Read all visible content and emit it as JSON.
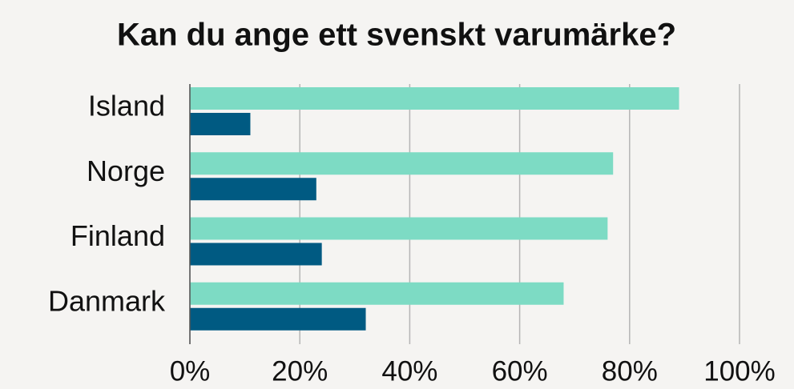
{
  "chart_data": {
    "type": "barh",
    "title": "Kan du ange ett svenskt varumärke?",
    "categories": [
      "Island",
      "Norge",
      "Finland",
      "Danmark"
    ],
    "series": [
      {
        "color": "#7ddbc4",
        "values": [
          89,
          77,
          76,
          68
        ]
      },
      {
        "color": "#005a82",
        "values": [
          11,
          23,
          24,
          32
        ]
      }
    ],
    "xlim": [
      0,
      100
    ],
    "xticks": [
      {
        "value": 0,
        "label": "0%"
      },
      {
        "value": 20,
        "label": "20%"
      },
      {
        "value": 40,
        "label": "40%"
      },
      {
        "value": 60,
        "label": "60%"
      },
      {
        "value": 80,
        "label": "80%"
      },
      {
        "value": 100,
        "label": "100%"
      }
    ],
    "grid": true
  }
}
